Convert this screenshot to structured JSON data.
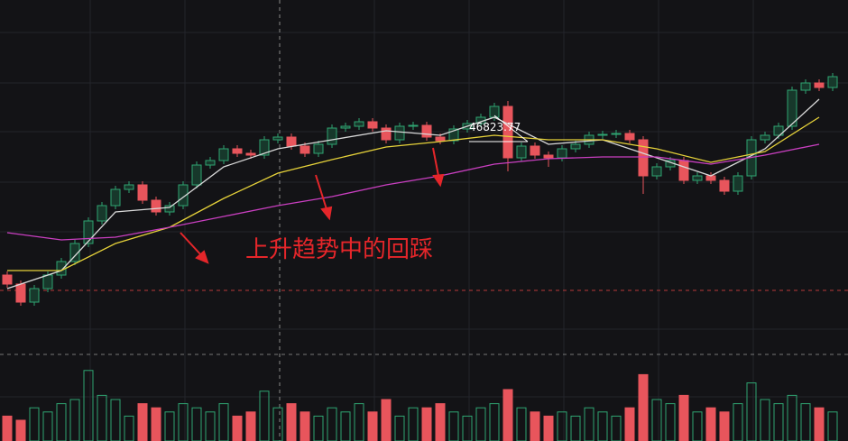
{
  "chart_data": {
    "type": "candlestick",
    "annotation": "上升趋势中的回踩",
    "price_label": 46823.77,
    "ylim": [
      41800,
      49600
    ],
    "vlim": [
      0,
      100
    ],
    "up_color": "#2fa572",
    "down_color": "#e8555c",
    "ohlc": [
      [
        43500,
        43580,
        43220,
        43300
      ],
      [
        43300,
        43380,
        42820,
        42900
      ],
      [
        42900,
        43280,
        42820,
        43200
      ],
      [
        43200,
        43580,
        43120,
        43500
      ],
      [
        43500,
        43880,
        43420,
        43800
      ],
      [
        43800,
        44280,
        43720,
        44200
      ],
      [
        44200,
        44780,
        44120,
        44700
      ],
      [
        44700,
        45120,
        44620,
        45040
      ],
      [
        45040,
        45480,
        44960,
        45400
      ],
      [
        45400,
        45580,
        45320,
        45500
      ],
      [
        45500,
        45580,
        45080,
        45160
      ],
      [
        45160,
        45240,
        44820,
        44900
      ],
      [
        44900,
        45120,
        44820,
        45040
      ],
      [
        45040,
        45580,
        44960,
        45500
      ],
      [
        45500,
        46020,
        45420,
        45940
      ],
      [
        45940,
        46120,
        45860,
        46040
      ],
      [
        46040,
        46380,
        45960,
        46300
      ],
      [
        46300,
        46380,
        46120,
        46200
      ],
      [
        46200,
        46280,
        46080,
        46160
      ],
      [
        46160,
        46580,
        46080,
        46500
      ],
      [
        46500,
        46640,
        46420,
        46560
      ],
      [
        46560,
        46640,
        46280,
        46360
      ],
      [
        46360,
        46440,
        46120,
        46200
      ],
      [
        46200,
        46480,
        46120,
        46400
      ],
      [
        46400,
        46840,
        46320,
        46760
      ],
      [
        46760,
        46880,
        46680,
        46800
      ],
      [
        46800,
        46980,
        46720,
        46900
      ],
      [
        46900,
        46980,
        46680,
        46760
      ],
      [
        46760,
        46840,
        46420,
        46500
      ],
      [
        46500,
        46880,
        46420,
        46800
      ],
      [
        46800,
        46900,
        46720,
        46820
      ],
      [
        46820,
        46900,
        46480,
        46560
      ],
      [
        46560,
        46640,
        46400,
        46480
      ],
      [
        46480,
        46820,
        46400,
        46740
      ],
      [
        46740,
        46940,
        46660,
        46860
      ],
      [
        46860,
        47080,
        46780,
        47000
      ],
      [
        47000,
        47320,
        46920,
        47240
      ],
      [
        47240,
        47360,
        45800,
        46100
      ],
      [
        46100,
        46440,
        46020,
        46360
      ],
      [
        46360,
        46440,
        46080,
        46160
      ],
      [
        46160,
        46240,
        45900,
        46100
      ],
      [
        46100,
        46380,
        46020,
        46300
      ],
      [
        46300,
        46480,
        46220,
        46400
      ],
      [
        46400,
        46680,
        46320,
        46600
      ],
      [
        46600,
        46700,
        46520,
        46620
      ],
      [
        46620,
        46720,
        46540,
        46640
      ],
      [
        46640,
        46720,
        46420,
        46500
      ],
      [
        46500,
        46580,
        45300,
        45700
      ],
      [
        45700,
        45980,
        45620,
        45900
      ],
      [
        45900,
        46120,
        45820,
        46040
      ],
      [
        46040,
        46120,
        45520,
        45600
      ],
      [
        45600,
        45780,
        45520,
        45700
      ],
      [
        45700,
        45780,
        45520,
        45600
      ],
      [
        45600,
        45680,
        45280,
        45360
      ],
      [
        45360,
        45780,
        45280,
        45700
      ],
      [
        45700,
        46580,
        45620,
        46500
      ],
      [
        46500,
        46680,
        46420,
        46600
      ],
      [
        46600,
        46880,
        46520,
        46800
      ],
      [
        46800,
        47680,
        46720,
        47600
      ],
      [
        47600,
        47840,
        47520,
        47760
      ],
      [
        47760,
        47840,
        47580,
        47660
      ],
      [
        47660,
        47980,
        47580,
        47900
      ]
    ],
    "volume": [
      30,
      25,
      40,
      35,
      45,
      50,
      85,
      55,
      50,
      30,
      45,
      40,
      35,
      45,
      40,
      35,
      45,
      30,
      35,
      60,
      40,
      45,
      35,
      30,
      40,
      35,
      45,
      35,
      50,
      30,
      40,
      40,
      45,
      35,
      30,
      40,
      45,
      62,
      40,
      35,
      30,
      35,
      30,
      40,
      35,
      30,
      40,
      80,
      50,
      45,
      55,
      35,
      40,
      35,
      45,
      70,
      50,
      45,
      55,
      45,
      40,
      35
    ],
    "series": [
      {
        "color": "#d9d9d9",
        "x": [
          0,
          4,
          8,
          12,
          16,
          20,
          24,
          28,
          32,
          36,
          40,
          44,
          48,
          52,
          56,
          60
        ],
        "values": [
          43200,
          43600,
          44900,
          45000,
          45900,
          46300,
          46500,
          46700,
          46600,
          47000,
          46400,
          46500,
          46100,
          45700,
          46300,
          47400
        ]
      },
      {
        "color": "#e6d23a",
        "x": [
          0,
          4,
          8,
          12,
          16,
          20,
          24,
          28,
          32,
          36,
          40,
          44,
          48,
          52,
          56,
          60
        ],
        "values": [
          43600,
          43600,
          44200,
          44560,
          45200,
          45760,
          46060,
          46340,
          46460,
          46600,
          46500,
          46500,
          46300,
          46000,
          46240,
          47000
        ]
      },
      {
        "color": "#c93fc0",
        "x": [
          0,
          4,
          8,
          12,
          16,
          20,
          24,
          28,
          32,
          36,
          40,
          44,
          48,
          52,
          56,
          60
        ],
        "values": [
          44440,
          44280,
          44340,
          44560,
          44800,
          45040,
          45240,
          45500,
          45700,
          45960,
          46080,
          46120,
          46120,
          45960,
          46160,
          46400
        ]
      }
    ]
  }
}
